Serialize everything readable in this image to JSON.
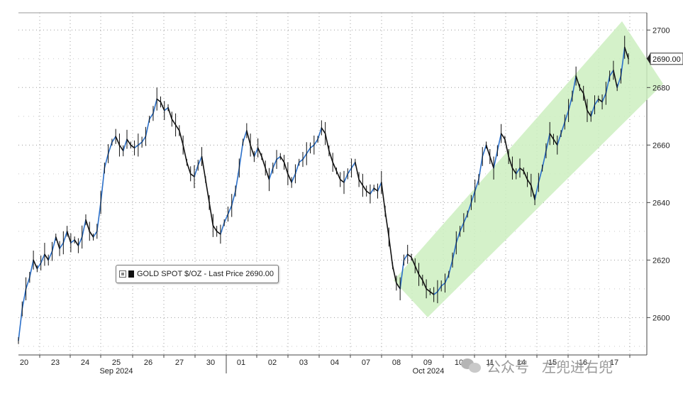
{
  "chart_data": {
    "type": "line",
    "title": "",
    "xlabel": "",
    "ylabel": "",
    "ylim": [
      2587,
      2706
    ],
    "y_ticks": [
      2600,
      2620,
      2640,
      2660,
      2680,
      2700
    ],
    "grid": true,
    "legend_placement": "bottom-center",
    "series": [
      {
        "name": "GOLD SPOT $/OZ - Last Price 2690.00",
        "color_up": "#2a6fc9",
        "color_down": "#111111",
        "values": [
          2592,
          2603,
          2610,
          2614,
          2620,
          2617,
          2619,
          2622,
          2620,
          2623,
          2628,
          2624,
          2626,
          2630,
          2626,
          2627,
          2625,
          2628,
          2634,
          2630,
          2628,
          2630,
          2640,
          2652,
          2657,
          2661,
          2663,
          2660,
          2658,
          2662,
          2660,
          2659,
          2660,
          2661,
          2663,
          2669,
          2671,
          2676,
          2675,
          2672,
          2673,
          2669,
          2667,
          2665,
          2660,
          2654,
          2650,
          2649,
          2653,
          2656,
          2648,
          2640,
          2632,
          2630,
          2629,
          2633,
          2636,
          2639,
          2644,
          2652,
          2661,
          2665,
          2660,
          2656,
          2659,
          2656,
          2652,
          2648,
          2652,
          2655,
          2656,
          2654,
          2650,
          2647,
          2650,
          2654,
          2655,
          2657,
          2659,
          2660,
          2662,
          2666,
          2664,
          2658,
          2654,
          2651,
          2648,
          2647,
          2650,
          2652,
          2654,
          2648,
          2646,
          2644,
          2643,
          2645,
          2644,
          2647,
          2637,
          2628,
          2618,
          2612,
          2610,
          2620,
          2622,
          2621,
          2618,
          2615,
          2613,
          2610,
          2609,
          2608,
          2609,
          2611,
          2612,
          2615,
          2620,
          2626,
          2630,
          2633,
          2636,
          2640,
          2644,
          2648,
          2656,
          2660,
          2656,
          2652,
          2658,
          2664,
          2662,
          2656,
          2652,
          2650,
          2652,
          2651,
          2648,
          2646,
          2641,
          2647,
          2652,
          2658,
          2664,
          2662,
          2660,
          2664,
          2668,
          2672,
          2677,
          2684,
          2680,
          2678,
          2672,
          2670,
          2674,
          2676,
          2675,
          2678,
          2684,
          2686,
          2680,
          2684,
          2694,
          2690
        ]
      }
    ],
    "channel": {
      "label": "",
      "color": "#cdeec0",
      "lower_start": 2608,
      "lower_end": 2685,
      "upper_start": 2618,
      "upper_end": 2702
    },
    "last_price_label": "2690.00",
    "last_price": 2690.0,
    "x_day_labels": [
      "20",
      "23",
      "24",
      "25",
      "26",
      "27",
      "30",
      "01",
      "02",
      "03",
      "04",
      "07",
      "08",
      "09",
      "10",
      "11",
      "14",
      "15",
      "16",
      "17"
    ],
    "x_month_labels": [
      "Sep 2024",
      "Oct 2024"
    ]
  },
  "legend": {
    "text": "GOLD SPOT $/OZ - Last Price 2690.00"
  },
  "watermark": {
    "icon": "wechat-logo-icon",
    "channel": "公众号",
    "name": "左兜进右兜"
  }
}
